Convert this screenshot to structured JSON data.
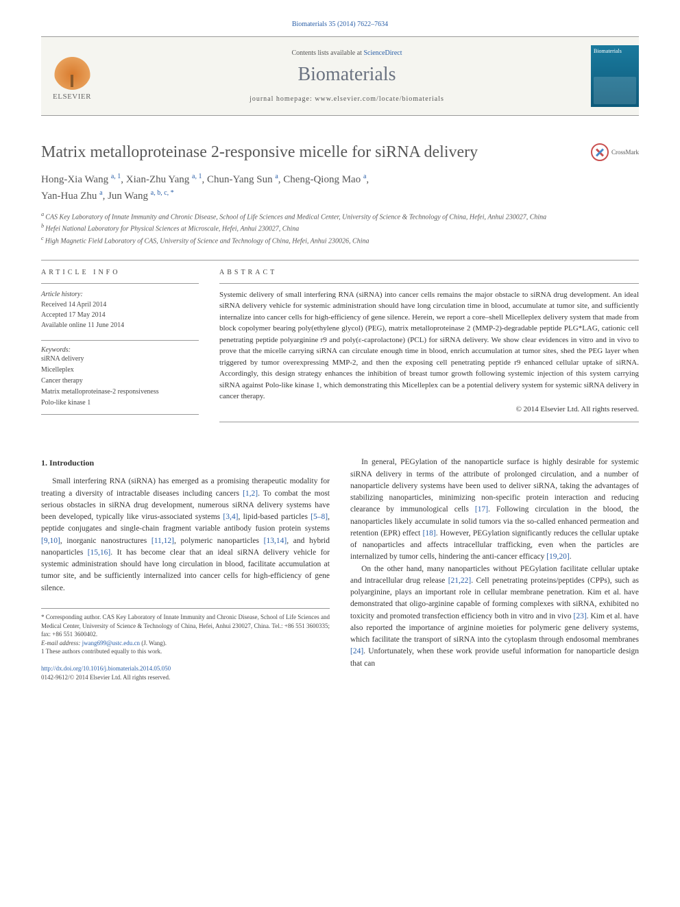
{
  "colors": {
    "link": "#2a5fa8",
    "body_text": "#333333",
    "muted": "#555555",
    "journal_gray": "#6a7280",
    "rule": "#999999",
    "elsevier_orange": "#d97b2e",
    "cover_gradient_top": "#1a7a9e",
    "cover_gradient_bottom": "#0d5a7a",
    "crossmark_red": "#c94f4f",
    "crossmark_blue": "#4a8ac9"
  },
  "header": {
    "citation_prefix": "Biomaterials 35 (2014) 7622–7634",
    "contents_line_pre": "Contents lists available at ",
    "contents_line_link": "ScienceDirect",
    "journal_name": "Biomaterials",
    "homepage_label": "journal homepage: ",
    "homepage_url": "www.elsevier.com/locate/biomaterials",
    "publisher_name": "ELSEVIER",
    "cover_label": "Biomaterials"
  },
  "crossmark_label": "CrossMark",
  "article": {
    "title": "Matrix metalloproteinase 2-responsive micelle for siRNA delivery",
    "authors_html": "Hong-Xia Wang",
    "authors": [
      {
        "name": "Hong-Xia Wang",
        "affil": "a, 1"
      },
      {
        "name": "Xian-Zhu Yang",
        "affil": "a, 1"
      },
      {
        "name": "Chun-Yang Sun",
        "affil": "a"
      },
      {
        "name": "Cheng-Qiong Mao",
        "affil": "a"
      },
      {
        "name": "Yan-Hua Zhu",
        "affil": "a"
      },
      {
        "name": "Jun Wang",
        "affil": "a, b, c, *"
      }
    ],
    "affiliations": [
      {
        "sup": "a",
        "text": "CAS Key Laboratory of Innate Immunity and Chronic Disease, School of Life Sciences and Medical Center, University of Science & Technology of China, Hefei, Anhui 230027, China"
      },
      {
        "sup": "b",
        "text": "Hefei National Laboratory for Physical Sciences at Microscale, Hefei, Anhui 230027, China"
      },
      {
        "sup": "c",
        "text": "High Magnetic Field Laboratory of CAS, University of Science and Technology of China, Hefei, Anhui 230026, China"
      }
    ]
  },
  "info": {
    "article_info_label": "ARTICLE INFO",
    "abstract_label": "ABSTRACT",
    "history_label": "Article history:",
    "received": "Received 14 April 2014",
    "accepted": "Accepted 17 May 2014",
    "online": "Available online 11 June 2014",
    "keywords_label": "Keywords:",
    "keywords": [
      "siRNA delivery",
      "Micelleplex",
      "Cancer therapy",
      "Matrix metalloproteinase-2 responsiveness",
      "Polo-like kinase 1"
    ]
  },
  "abstract_text": "Systemic delivery of small interfering RNA (siRNA) into cancer cells remains the major obstacle to siRNA drug development. An ideal siRNA delivery vehicle for systemic administration should have long circulation time in blood, accumulate at tumor site, and sufficiently internalize into cancer cells for high-efficiency of gene silence. Herein, we report a core–shell Micelleplex delivery system that made from block copolymer bearing poly(ethylene glycol) (PEG), matrix metalloproteinase 2 (MMP-2)-degradable peptide PLG*LAG, cationic cell penetrating peptide polyarginine r9 and poly(ε-caprolactone) (PCL) for siRNA delivery. We show clear evidences in vitro and in vivo to prove that the micelle carrying siRNA can circulate enough time in blood, enrich accumulation at tumor sites, shed the PEG layer when triggered by tumor overexpressing MMP-2, and then the exposing cell penetrating peptide r9 enhanced cellular uptake of siRNA. Accordingly, this design strategy enhances the inhibition of breast tumor growth following systemic injection of this system carrying siRNA against Polo-like kinase 1, which demonstrating this Micelleplex can be a potential delivery system for systemic siRNA delivery in cancer therapy.",
  "copyright": "© 2014 Elsevier Ltd. All rights reserved.",
  "body": {
    "section_number": "1.",
    "section_title": "Introduction",
    "col1_p1": "Small interfering RNA (siRNA) has emerged as a promising therapeutic modality for treating a diversity of intractable diseases including cancers [1,2]. To combat the most serious obstacles in siRNA drug development, numerous siRNA delivery systems have been developed, typically like virus-associated systems [3,4], lipid-based particles [5–8], peptide conjugates and single-chain fragment variable antibody fusion protein systems [9,10], inorganic nanostructures [11,12], polymeric nanoparticles [13,14], and hybrid nanoparticles [15,16]. It has become clear that an ideal siRNA delivery vehicle for systemic administration should have long circulation in blood, facilitate accumulation at tumor site, and be sufficiently internalized into cancer cells for high-efficiency of gene silence.",
    "col2_p1": "In general, PEGylation of the nanoparticle surface is highly desirable for systemic siRNA delivery in terms of the attribute of prolonged circulation, and a number of nanoparticle delivery systems have been used to deliver siRNA, taking the advantages of stabilizing nanoparticles, minimizing non-specific protein interaction and reducing clearance by immunological cells [17]. Following circulation in the blood, the nanoparticles likely accumulate in solid tumors via the so-called enhanced permeation and retention (EPR) effect [18]. However, PEGylation significantly reduces the cellular uptake of nanoparticles and affects intracellular trafficking, even when the particles are internalized by tumor cells, hindering the anti-cancer efficacy [19,20].",
    "col2_p2": "On the other hand, many nanoparticles without PEGylation facilitate cellular uptake and intracellular drug release [21,22]. Cell penetrating proteins/peptides (CPPs), such as polyarginine, plays an important role in cellular membrane penetration. Kim et al. have demonstrated that oligo-arginine capable of forming complexes with siRNA, exhibited no toxicity and promoted transfection efficiency both in vitro and in vivo [23]. Kim et al. have also reported the importance of arginine moieties for polymeric gene delivery systems, which facilitate the transport of siRNA into the cytoplasm through endosomal membranes [24]. Unfortunately, when these work provide useful information for nanoparticle design that can"
  },
  "footnotes": {
    "corresponding": "* Corresponding author. CAS Key Laboratory of Innate Immunity and Chronic Disease, School of Life Sciences and Medical Center, University of Science & Technology of China, Hefei, Anhui 230027, China. Tel.: +86 551 3600335; fax: +86 551 3600402.",
    "email_label": "E-mail address: ",
    "email": "jwang699@ustc.edu.cn",
    "email_who": " (J. Wang).",
    "equal": "1 These authors contributed equally to this work.",
    "doi_url": "http://dx.doi.org/10.1016/j.biomaterials.2014.05.050",
    "issn_line": "0142-9612/© 2014 Elsevier Ltd. All rights reserved."
  }
}
